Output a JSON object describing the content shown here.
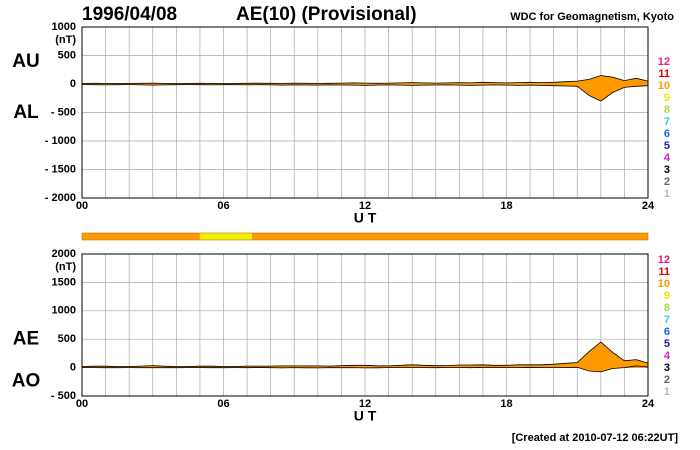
{
  "title": "1996/04/08",
  "subtitle": "AE(10) (Provisional)",
  "source": "WDC for Geomagnetism, Kyoto",
  "footer": "[Created at 2010-07-12 06:22UT]",
  "station_legend": [
    {
      "value": 12,
      "color": "#e8207a"
    },
    {
      "value": 11,
      "color": "#e00000"
    },
    {
      "value": 10,
      "color": "#ff9900"
    },
    {
      "value": 9,
      "color": "#f0e800"
    },
    {
      "value": 8,
      "color": "#a0e040"
    },
    {
      "value": 7,
      "color": "#40c8e8"
    },
    {
      "value": 6,
      "color": "#2060e0"
    },
    {
      "value": 5,
      "color": "#2020a0"
    },
    {
      "value": 4,
      "color": "#d020d0"
    },
    {
      "value": 3,
      "color": "#000000"
    },
    {
      "value": 2,
      "color": "#666666"
    },
    {
      "value": 1,
      "color": "#bbbbbb"
    }
  ],
  "coverage": [
    {
      "start": 0,
      "end": 5,
      "stations": 10,
      "color": "#ff9900"
    },
    {
      "start": 5,
      "end": 7.2,
      "stations": 9,
      "color": "#f0f000"
    },
    {
      "start": 7.2,
      "end": 24,
      "stations": 10,
      "color": "#ff9900"
    }
  ],
  "chart_data": [
    {
      "type": "area",
      "ylabel": "(nT)",
      "xlabel": "U T",
      "grid": true,
      "xlim": [
        0,
        24
      ],
      "ylim": [
        -2000,
        1000
      ],
      "xticks": [
        {
          "value": 0,
          "label": "00"
        },
        {
          "value": 6,
          "label": "06"
        },
        12,
        18,
        24
      ],
      "xgrid": [
        0,
        1,
        2,
        3,
        4,
        5,
        6,
        7,
        8,
        9,
        10,
        11,
        12,
        13,
        14,
        15,
        16,
        17,
        18,
        19,
        20,
        21,
        22,
        23,
        24
      ],
      "yticks": [
        1000,
        500,
        0,
        {
          "value": -500,
          "label": "- 500"
        },
        {
          "value": -1000,
          "label": "- 1000"
        },
        {
          "value": -1500,
          "label": "- 1500"
        },
        {
          "value": -2000,
          "label": "- 2000"
        }
      ],
      "x": [
        0,
        0.5,
        1,
        1.5,
        2,
        2.5,
        3,
        3.5,
        4,
        4.5,
        5,
        5.5,
        6,
        6.5,
        7,
        7.5,
        8,
        8.5,
        9,
        9.5,
        10,
        10.5,
        11,
        11.5,
        12,
        12.5,
        13,
        13.5,
        14,
        14.5,
        15,
        15.5,
        16,
        16.5,
        17,
        17.5,
        18,
        18.5,
        19,
        19.5,
        20,
        20.5,
        21,
        21.5,
        22,
        22.5,
        23,
        23.5,
        24
      ],
      "series": [
        {
          "name": "AU",
          "color": "#ff9900",
          "values": [
            10,
            12,
            10,
            8,
            10,
            12,
            15,
            10,
            8,
            10,
            12,
            10,
            8,
            10,
            12,
            15,
            12,
            10,
            15,
            12,
            10,
            12,
            15,
            20,
            15,
            12,
            15,
            20,
            25,
            20,
            15,
            20,
            25,
            20,
            30,
            25,
            20,
            25,
            30,
            25,
            30,
            40,
            50,
            80,
            150,
            120,
            60,
            100,
            50
          ]
        },
        {
          "name": "AL",
          "color": "#ff9900",
          "values": [
            -10,
            -12,
            -15,
            -12,
            -10,
            -15,
            -20,
            -15,
            -12,
            -10,
            -12,
            -15,
            -12,
            -10,
            -15,
            -12,
            -15,
            -20,
            -15,
            -18,
            -20,
            -15,
            -18,
            -20,
            -25,
            -20,
            -15,
            -20,
            -25,
            -20,
            -18,
            -15,
            -20,
            -25,
            -20,
            -15,
            -20,
            -25,
            -20,
            -25,
            -30,
            -35,
            -40,
            -200,
            -300,
            -150,
            -60,
            -40,
            -30
          ]
        }
      ]
    },
    {
      "type": "area",
      "ylabel": "(nT)",
      "xlabel": "U T",
      "grid": true,
      "xlim": [
        0,
        24
      ],
      "ylim": [
        -500,
        2000
      ],
      "xticks": [
        {
          "value": 0,
          "label": "00"
        },
        {
          "value": 6,
          "label": "06"
        },
        12,
        18,
        24
      ],
      "xgrid": [
        0,
        1,
        2,
        3,
        4,
        5,
        6,
        7,
        8,
        9,
        10,
        11,
        12,
        13,
        14,
        15,
        16,
        17,
        18,
        19,
        20,
        21,
        22,
        23,
        24
      ],
      "yticks": [
        2000,
        1500,
        1000,
        500,
        0,
        {
          "value": -500,
          "label": "- 500"
        }
      ],
      "x": [
        0,
        0.5,
        1,
        1.5,
        2,
        2.5,
        3,
        3.5,
        4,
        4.5,
        5,
        5.5,
        6,
        6.5,
        7,
        7.5,
        8,
        8.5,
        9,
        9.5,
        10,
        10.5,
        11,
        11.5,
        12,
        12.5,
        13,
        13.5,
        14,
        14.5,
        15,
        15.5,
        16,
        16.5,
        17,
        17.5,
        18,
        18.5,
        19,
        19.5,
        20,
        20.5,
        21,
        21.5,
        22,
        22.5,
        23,
        23.5,
        24
      ],
      "series": [
        {
          "name": "AE",
          "color": "#ff9900",
          "values": [
            20,
            24,
            25,
            20,
            20,
            27,
            35,
            25,
            20,
            20,
            24,
            25,
            20,
            20,
            27,
            27,
            27,
            30,
            30,
            30,
            30,
            27,
            33,
            40,
            40,
            32,
            30,
            40,
            50,
            40,
            33,
            35,
            45,
            45,
            50,
            40,
            40,
            50,
            50,
            50,
            60,
            75,
            90,
            280,
            450,
            270,
            120,
            140,
            80
          ]
        },
        {
          "name": "AO",
          "color": "#ff9900",
          "values": [
            0,
            0,
            -2.5,
            -2,
            0,
            -1.5,
            -2.5,
            -2.5,
            -2,
            0,
            0,
            -2.5,
            -2,
            0,
            -1.5,
            1.5,
            -1.5,
            -5,
            0,
            -3,
            -5,
            -1.5,
            -1.5,
            0,
            -5,
            -4,
            0,
            0,
            0,
            0,
            -1.5,
            2.5,
            2.5,
            -2.5,
            5,
            5,
            0,
            0,
            5,
            0,
            0,
            2.5,
            5,
            -60,
            -75,
            -15,
            0,
            30,
            10
          ]
        }
      ]
    }
  ]
}
